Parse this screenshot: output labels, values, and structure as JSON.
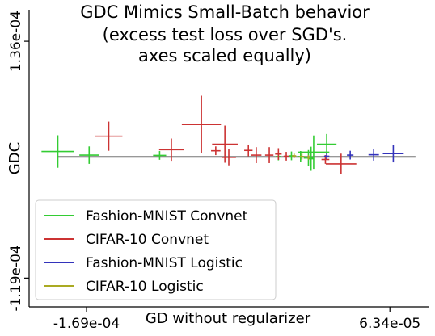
{
  "chart_data": {
    "type": "scatter",
    "title": [
      "GDC Mimics Small-Batch behavior",
      "(excess test loss over SGD's.",
      "axes scaled equally)"
    ],
    "xlabel": "GD without regularizer",
    "ylabel": "GDC",
    "x_ticks": [
      {
        "value": -0.000169,
        "label": "-1.69e-04"
      },
      {
        "value": 6.34e-05,
        "label": "6.34e-05"
      }
    ],
    "y_ticks": [
      {
        "value": 0.000136,
        "label": "1.36e-04"
      },
      {
        "value": -0.000119,
        "label": "-1.19e-04"
      }
    ],
    "xlim": [
      -0.000213,
      9.3e-05
    ],
    "ylim": [
      -0.00015,
      0.00017
    ],
    "reference_line": {
      "x": [
        -0.000191,
        8.3e-05
      ],
      "y": [
        1.15e-05,
        1.15e-05
      ],
      "color": "#777777"
    },
    "legend_position": "lower-left",
    "series": [
      {
        "name": "Fashion-MNIST Convnet",
        "color": "#33cc33",
        "points": [
          {
            "x": -0.000191,
            "y": 1.73e-05,
            "xerr": 1.25e-05,
            "yerr": 1.75e-05
          },
          {
            "x": -0.000167,
            "y": 1.34e-05,
            "xerr": 7.5e-06,
            "yerr": 9.4e-06
          },
          {
            "x": -0.000113,
            "y": 1.31e-05,
            "xerr": 5e-06,
            "yerr": 4.7e-06
          },
          {
            "x": 5e-06,
            "y": 1.66e-05,
            "xerr": 1.2e-05,
            "yerr": 1.8e-05
          },
          {
            "x": 1.5e-05,
            "y": 2.52e-05,
            "xerr": 7.5e-06,
            "yerr": 1.1e-05
          },
          {
            "x": 1e-06,
            "y": 1.03e-05,
            "xerr": 3.6e-06,
            "yerr": 8.6e-06
          },
          {
            "x": -5e-06,
            "y": 1.18e-05,
            "xerr": 2.5e-06,
            "yerr": 6e-06
          },
          {
            "x": -1.2e-05,
            "y": 1.26e-05,
            "xerr": 2e-06,
            "yerr": 4.7e-06
          },
          {
            "x": 3e-06,
            "y": 9.5e-06,
            "xerr": 2e-06,
            "yerr": 1.3e-05
          },
          {
            "x": -2.2e-05,
            "y": 1.18e-05,
            "xerr": 2e-06,
            "yerr": 4e-06
          }
        ]
      },
      {
        "name": "CIFAR-10 Convnet",
        "color": "#cc3333",
        "points": [
          {
            "x": -0.000152,
            "y": 3.38e-05,
            "xerr": 1.05e-05,
            "yerr": 1.57e-05
          },
          {
            "x": -8.1e-05,
            "y": 4.64e-05,
            "xerr": 1.5e-05,
            "yerr": 3.1e-05
          },
          {
            "x": -0.000104,
            "y": 1.93e-05,
            "xerr": 9.4e-06,
            "yerr": 1.2e-05
          },
          {
            "x": -6.3e-05,
            "y": 2.52e-05,
            "xerr": 9.8e-06,
            "yerr": 2e-05
          },
          {
            "x": -6e-05,
            "y": 1.1e-05,
            "xerr": 5.5e-06,
            "yerr": 8.6e-06
          },
          {
            "x": -7e-05,
            "y": 1.81e-05,
            "xerr": 3.6e-06,
            "yerr": 4.7e-06
          },
          {
            "x": -4.5e-05,
            "y": 1.85e-05,
            "xerr": 3.2e-06,
            "yerr": 6.3e-06
          },
          {
            "x": -3.9e-05,
            "y": 1.34e-05,
            "xerr": 4e-06,
            "yerr": 8.6e-06
          },
          {
            "x": -2.9e-05,
            "y": 1.34e-05,
            "xerr": 3.2e-06,
            "yerr": 8.6e-06
          },
          {
            "x": -2.2e-05,
            "y": 1.46e-05,
            "xerr": 2.5e-06,
            "yerr": 6.3e-06
          },
          {
            "x": -1.6e-05,
            "y": 1.22e-05,
            "xerr": 2e-06,
            "yerr": 4.7e-06
          },
          {
            "x": 2.6e-05,
            "y": 4e-06,
            "xerr": 1.17e-05,
            "yerr": 1.1e-05
          },
          {
            "x": 1.4e-05,
            "y": 8.7e-06,
            "xerr": 3e-06,
            "yerr": 4.7e-06
          }
        ]
      },
      {
        "name": "Fashion-MNIST Logistic",
        "color": "#3333bb",
        "points": [
          {
            "x": 6.6e-05,
            "y": 1.5e-05,
            "xerr": 8e-06,
            "yerr": 9.4e-06
          },
          {
            "x": 5.1e-05,
            "y": 1.38e-05,
            "xerr": 4e-06,
            "yerr": 6.3e-06
          },
          {
            "x": 3.3e-05,
            "y": 1.34e-05,
            "xerr": 2.5e-06,
            "yerr": 4.7e-06
          },
          {
            "x": 1.5e-05,
            "y": 1.22e-05,
            "xerr": 2e-06,
            "yerr": 3.1e-06
          }
        ]
      },
      {
        "name": "CIFAR-10 Logistic",
        "color": "#aaaa22",
        "points": [
          {
            "x": -4e-06,
            "y": 1.18e-05,
            "xerr": 2e-06,
            "yerr": 3.1e-06
          },
          {
            "x": -1e-05,
            "y": 1.26e-05,
            "xerr": 1.6e-06,
            "yerr": 2.4e-06
          },
          {
            "x": 1e-06,
            "y": 1.1e-05,
            "xerr": 1.2e-06,
            "yerr": 2.4e-06
          }
        ]
      }
    ]
  }
}
